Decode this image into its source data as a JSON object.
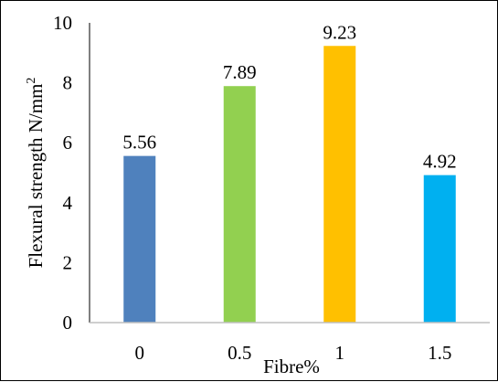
{
  "chart_data": {
    "type": "bar",
    "categories": [
      "0",
      "0.5",
      "1",
      "1.5"
    ],
    "values": [
      5.56,
      7.89,
      9.23,
      4.92
    ],
    "value_labels": [
      "5.56",
      "7.89",
      "9.23",
      "4.92"
    ],
    "colors": [
      "#4F81BD",
      "#92D050",
      "#FFC000",
      "#00B0F0"
    ],
    "xlabel": "Fibre%",
    "ylabel_main": "Flexural strength N/mm",
    "ylabel_sup": "2",
    "ylim": [
      0,
      10
    ],
    "yticks": [
      "0",
      "2",
      "4",
      "6",
      "8",
      "10"
    ],
    "grid": false,
    "legend": "none"
  }
}
